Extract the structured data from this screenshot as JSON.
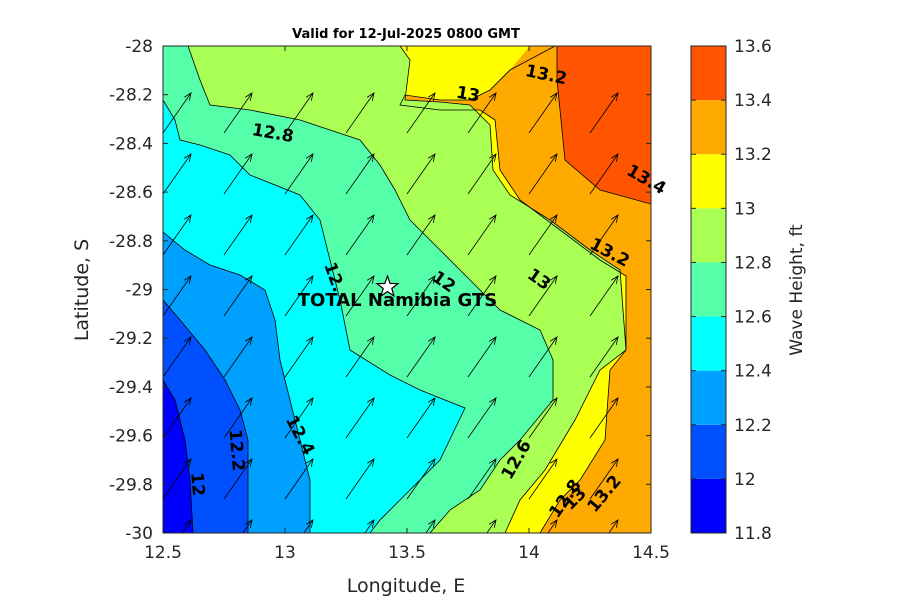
{
  "chart_data": {
    "type": "contour",
    "title": "Valid for 12-Jul-2025 0800 GMT",
    "xlabel": "Longitude, E",
    "ylabel": "Latitude, S",
    "colorbar_label": "Wave Height, ft",
    "xlim": [
      12.5,
      14.5
    ],
    "ylim": [
      -30,
      -28
    ],
    "xticks": [
      "12.5",
      "13",
      "13.5",
      "14",
      "14.5"
    ],
    "yticks": [
      "-28",
      "-28.2",
      "-28.4",
      "-28.6",
      "-28.8",
      "-29",
      "-29.2",
      "-29.4",
      "-29.6",
      "-29.8",
      "-30"
    ],
    "colorbar_ticks": [
      "11.8",
      "12",
      "12.2",
      "12.4",
      "12.6",
      "12.8",
      "13",
      "13.2",
      "13.4",
      "13.6"
    ],
    "levels": [
      11.8,
      12.0,
      12.2,
      12.4,
      12.6,
      12.8,
      13.0,
      13.2,
      13.4,
      13.6
    ],
    "level_colors": [
      "#0000ff",
      "#0050ff",
      "#00a0ff",
      "#00ffff",
      "#55ffa9",
      "#aaff55",
      "#ffff00",
      "#ffaa00",
      "#ff5500"
    ],
    "grid": false,
    "marker": {
      "label": "TOTAL Namibia GTS",
      "lon": 13.42,
      "lat": -28.99
    },
    "contour_labels": [
      {
        "text": "13.2",
        "lon": 14.07,
        "lat": -28.12,
        "angle": 12
      },
      {
        "text": "13",
        "lon": 13.75,
        "lat": -28.2,
        "angle": 10
      },
      {
        "text": "12.8",
        "lon": 12.95,
        "lat": -28.36,
        "angle": 10
      },
      {
        "text": "13.4",
        "lon": 14.48,
        "lat": -28.55,
        "angle": 30
      },
      {
        "text": "13.2",
        "lon": 14.33,
        "lat": -28.85,
        "angle": 28
      },
      {
        "text": "13",
        "lon": 14.04,
        "lat": -28.96,
        "angle": 35
      },
      {
        "text": "12",
        "lon": 13.65,
        "lat": -28.97,
        "angle": 35
      },
      {
        "text": "12.",
        "lon": 13.2,
        "lat": -28.95,
        "angle": 70
      },
      {
        "text": "12.4",
        "lon": 13.06,
        "lat": -29.6,
        "angle": 62
      },
      {
        "text": "12.2",
        "lon": 12.8,
        "lat": -29.66,
        "angle": 85
      },
      {
        "text": "12",
        "lon": 12.64,
        "lat": -29.8,
        "angle": 85
      },
      {
        "text": "12.6",
        "lon": 13.95,
        "lat": -29.7,
        "angle": -60
      },
      {
        "text": "12.8",
        "lon": 14.15,
        "lat": -29.86,
        "angle": -55
      },
      {
        "text": "13",
        "lon": 14.19,
        "lat": -29.86,
        "angle": -45
      },
      {
        "text": "13.2",
        "lon": 14.31,
        "lat": -29.84,
        "angle": -50
      }
    ]
  }
}
